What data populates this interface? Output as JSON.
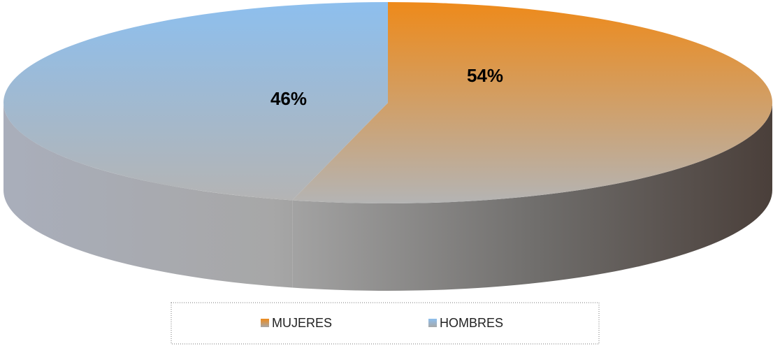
{
  "chart_data": {
    "type": "pie3d",
    "categories": [
      "MUJERES",
      "HOMBRES"
    ],
    "values": [
      54,
      46
    ],
    "value_labels": [
      "54%",
      "46%"
    ],
    "colors": [
      "#ee8a1a",
      "#8dbfee"
    ],
    "legend": "bottom"
  }
}
